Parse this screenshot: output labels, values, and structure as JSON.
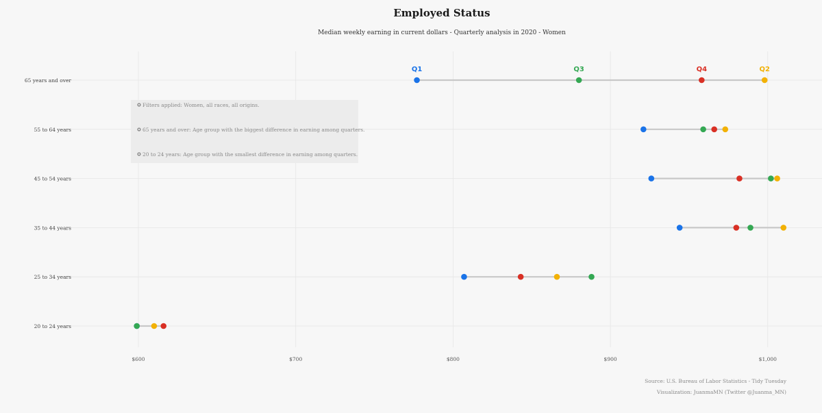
{
  "chart_data": {
    "type": "dumbbell",
    "title": "Employed Status",
    "subtitle": "Median weekly earning in current dollars - Quarterly analysis in 2020 - Women",
    "xlabel": "",
    "ylabel": "",
    "xlim": [
      555,
      1035
    ],
    "x_ticks": [
      600,
      700,
      800,
      900,
      1000
    ],
    "x_tick_labels": [
      "$600",
      "$700",
      "$800",
      "$900",
      "$1,000"
    ],
    "grid": true,
    "categories": [
      "65 years and over",
      "55 to 64 years",
      "45 to 54 years",
      "35 to 44 years",
      "25 to 34 years",
      "20 to 24 years"
    ],
    "series": [
      {
        "name": "Q1",
        "color": "#1a73e8",
        "values": [
          777,
          921,
          926,
          944,
          807,
          599
        ]
      },
      {
        "name": "Q2",
        "color": "#f2b105",
        "values": [
          998,
          973,
          1006,
          1010,
          866,
          610
        ]
      },
      {
        "name": "Q3",
        "color": "#34a853",
        "values": [
          880,
          959,
          1002,
          989,
          888,
          599
        ]
      },
      {
        "name": "Q4",
        "color": "#d93025",
        "values": [
          958,
          966,
          982,
          980,
          843,
          616
        ]
      }
    ],
    "legend_placement": "above first row"
  },
  "notes": [
    "Filters applied: Women, all races, all origins.",
    "65 years and over: Age group with the biggest difference in earning among quarters.",
    "20 to 24 years: Age group with the smallest difference in earning among quarters."
  ],
  "caption": {
    "source": "Source: U.S. Bureau of Labor Statistics - Tidy Tuesday",
    "credit": "Visualization: JuanmaMN (Twitter @Juanma_MN)"
  },
  "colors": {
    "background": "#f7f7f7",
    "grid": "#e6e6e6",
    "connector": "#c8c8c8",
    "note_box": "#ececec"
  }
}
